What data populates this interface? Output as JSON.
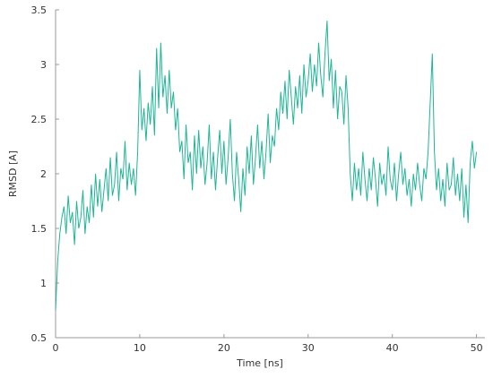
{
  "chart_data": {
    "type": "line",
    "x_label": "Time [ns]",
    "y_label": "RMSD [A]",
    "xlim": [
      0,
      51
    ],
    "xticks": [
      0,
      10,
      20,
      30,
      40,
      50
    ],
    "ylim": [
      0.5,
      3.5
    ],
    "yticks": [
      0.5,
      1,
      1.5,
      2,
      2.5,
      3,
      3.5
    ],
    "grid": false,
    "series": [
      {
        "color": "#1fb596",
        "x": [
          0,
          0.25,
          0.5,
          0.75,
          1,
          1.25,
          1.5,
          1.75,
          2,
          2.25,
          2.5,
          2.75,
          3,
          3.25,
          3.5,
          3.75,
          4,
          4.25,
          4.5,
          4.75,
          5,
          5.25,
          5.5,
          5.75,
          6,
          6.25,
          6.5,
          6.75,
          7,
          7.25,
          7.5,
          7.75,
          8,
          8.25,
          8.5,
          8.75,
          9,
          9.25,
          9.5,
          9.75,
          10,
          10.25,
          10.5,
          10.75,
          11,
          11.25,
          11.5,
          11.75,
          12,
          12.25,
          12.5,
          12.75,
          13,
          13.25,
          13.5,
          13.75,
          14,
          14.25,
          14.5,
          14.75,
          15,
          15.25,
          15.5,
          15.75,
          16,
          16.25,
          16.5,
          16.75,
          17,
          17.25,
          17.5,
          17.75,
          18,
          18.25,
          18.5,
          18.75,
          19,
          19.25,
          19.5,
          19.75,
          20,
          20.25,
          20.5,
          20.75,
          21,
          21.25,
          21.5,
          21.75,
          22,
          22.25,
          22.5,
          22.75,
          23,
          23.25,
          23.5,
          23.75,
          24,
          24.25,
          24.5,
          24.75,
          25,
          25.25,
          25.5,
          25.75,
          26,
          26.25,
          26.5,
          26.75,
          27,
          27.25,
          27.5,
          27.75,
          28,
          28.25,
          28.5,
          28.75,
          29,
          29.25,
          29.5,
          29.75,
          30,
          30.25,
          30.5,
          30.75,
          31,
          31.25,
          31.5,
          31.75,
          32,
          32.25,
          32.5,
          32.75,
          33,
          33.25,
          33.5,
          33.75,
          34,
          34.25,
          34.5,
          34.75,
          35,
          35.25,
          35.5,
          35.75,
          36,
          36.25,
          36.5,
          36.75,
          37,
          37.25,
          37.5,
          37.75,
          38,
          38.25,
          38.5,
          38.75,
          39,
          39.25,
          39.5,
          39.75,
          40,
          40.25,
          40.5,
          40.75,
          41,
          41.25,
          41.5,
          41.75,
          42,
          42.25,
          42.5,
          42.75,
          43,
          43.25,
          43.5,
          43.75,
          44,
          44.25,
          44.5,
          44.75,
          45,
          45.25,
          45.5,
          45.75,
          46,
          46.25,
          46.5,
          46.75,
          47,
          47.25,
          47.5,
          47.75,
          48,
          48.25,
          48.5,
          48.75,
          49,
          49.25,
          49.5,
          49.75,
          50
        ],
        "values": [
          0.75,
          1.2,
          1.45,
          1.6,
          1.7,
          1.45,
          1.8,
          1.55,
          1.65,
          1.35,
          1.75,
          1.5,
          1.6,
          1.85,
          1.45,
          1.7,
          1.55,
          1.9,
          1.6,
          2.0,
          1.7,
          1.95,
          1.65,
          1.85,
          2.05,
          1.75,
          2.15,
          1.8,
          1.9,
          2.2,
          1.75,
          2.05,
          1.95,
          2.3,
          1.85,
          2.1,
          1.9,
          2.05,
          1.8,
          2.2,
          2.95,
          2.4,
          2.6,
          2.3,
          2.65,
          2.45,
          2.8,
          2.35,
          3.15,
          2.6,
          3.2,
          2.7,
          2.9,
          2.55,
          2.95,
          2.6,
          2.75,
          2.4,
          2.6,
          2.2,
          2.3,
          1.95,
          2.45,
          2.1,
          2.2,
          1.85,
          2.35,
          2.0,
          2.4,
          2.05,
          2.25,
          1.9,
          2.1,
          2.45,
          1.95,
          2.2,
          1.85,
          2.15,
          2.4,
          2.0,
          2.3,
          1.9,
          2.15,
          2.5,
          2.0,
          1.75,
          2.2,
          1.95,
          1.65,
          2.05,
          1.8,
          2.25,
          2.0,
          2.35,
          1.9,
          2.15,
          2.45,
          2.05,
          2.3,
          1.95,
          2.2,
          2.55,
          2.1,
          2.35,
          2.25,
          2.6,
          2.4,
          2.75,
          2.55,
          2.85,
          2.5,
          2.95,
          2.7,
          2.45,
          2.8,
          2.6,
          2.9,
          2.55,
          3.0,
          2.7,
          2.85,
          3.1,
          2.75,
          3.0,
          2.8,
          3.2,
          2.9,
          2.7,
          3.1,
          3.4,
          2.85,
          3.05,
          2.6,
          2.95,
          2.5,
          2.8,
          2.75,
          2.45,
          2.9,
          2.6,
          2.0,
          1.75,
          2.1,
          1.85,
          2.05,
          1.8,
          2.2,
          1.95,
          1.75,
          2.05,
          1.85,
          2.15,
          1.95,
          1.7,
          2.1,
          1.9,
          2.0,
          1.8,
          2.25,
          1.95,
          1.85,
          2.1,
          1.75,
          2.0,
          2.2,
          1.9,
          2.05,
          1.8,
          1.95,
          1.7,
          2.0,
          1.85,
          2.1,
          1.9,
          1.75,
          2.05,
          1.95,
          2.2,
          2.65,
          3.1,
          2.2,
          1.85,
          2.05,
          1.75,
          1.95,
          1.7,
          2.1,
          1.85,
          1.9,
          2.15,
          1.8,
          2.0,
          1.75,
          2.05,
          1.6,
          1.9,
          1.55,
          2.1,
          2.3,
          2.05,
          2.2
        ]
      }
    ]
  }
}
